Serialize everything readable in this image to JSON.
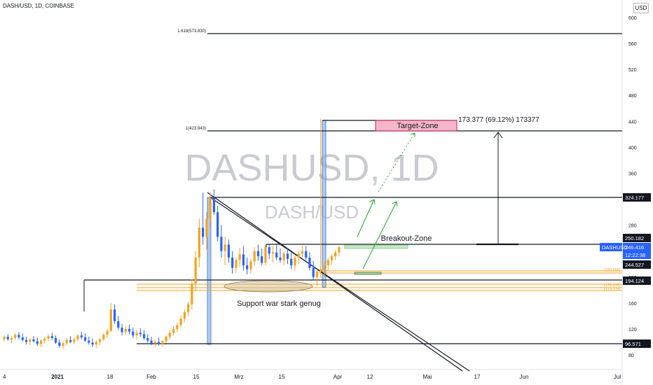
{
  "header": {
    "symbol_info": "DASH/USD, 1D, COINBASE",
    "currency_button": "USD"
  },
  "watermark": {
    "main": "DASHUSD, 1D",
    "sub": "DASH/USD"
  },
  "annotations": {
    "target_zone": "Target-Zone",
    "breakout_zone": "Breakout-Zone",
    "support_note": "Support war stark genug",
    "measure_label": "173.377 (69.12%) 173377",
    "fib_1618": "1.618(573.830)",
    "fib_1": "1(423.943)"
  },
  "price_badges": {
    "symbol": "DASHUSD",
    "price": "246.416",
    "countdown": "12:22:38"
  },
  "colors": {
    "up": "#f7a21b",
    "down": "#2962ff",
    "target_fill": "#f5b7c8",
    "breakout_fill": "#c8e6c9",
    "support_line": "#f7a21b",
    "arrow": "#1faa2b"
  },
  "chart_data": {
    "type": "candlestick",
    "title": "DASH/USD, 1D, COINBASE",
    "ylim": [
      60,
      620
    ],
    "y_ticks": [
      80,
      120,
      160,
      200,
      240,
      280,
      320,
      360,
      400,
      440,
      480,
      520,
      560,
      600
    ],
    "x_ticks": [
      "4",
      "2021",
      "18",
      "Feb",
      "15",
      "Mrz",
      "15",
      "Apr",
      "12",
      "Mai",
      "17",
      "Jun",
      "Jul"
    ],
    "horizontal_levels": [
      {
        "price": "573.830",
        "label": "1.618(573.830)"
      },
      {
        "price": "423.943",
        "label": "1(423.943)"
      },
      {
        "price": "324.177",
        "label": "324.177"
      },
      {
        "price": "250.182",
        "label": "250.182"
      },
      {
        "price": "244.527",
        "label": "244.527"
      },
      {
        "price": "194.124",
        "label": "194.124"
      },
      {
        "price": "96.571",
        "label": "96.571"
      }
    ],
    "orange_levels": [
      "(183.568)",
      "(176.978)",
      "(173.778)"
    ],
    "last_price": "246.416",
    "candles": [
      [
        104,
        110,
        100,
        108
      ],
      [
        108,
        112,
        102,
        104
      ],
      [
        104,
        109,
        98,
        106
      ],
      [
        106,
        114,
        103,
        111
      ],
      [
        111,
        115,
        104,
        107
      ],
      [
        107,
        113,
        101,
        103
      ],
      [
        103,
        108,
        96,
        100
      ],
      [
        100,
        106,
        95,
        104
      ],
      [
        104,
        109,
        99,
        101
      ],
      [
        101,
        107,
        94,
        97
      ],
      [
        97,
        104,
        92,
        102
      ],
      [
        102,
        108,
        97,
        105
      ],
      [
        105,
        112,
        101,
        109
      ],
      [
        109,
        114,
        103,
        106
      ],
      [
        106,
        110,
        97,
        99
      ],
      [
        99,
        104,
        91,
        94
      ],
      [
        94,
        101,
        89,
        98
      ],
      [
        98,
        106,
        95,
        103
      ],
      [
        103,
        109,
        98,
        100
      ],
      [
        100,
        107,
        96,
        104
      ],
      [
        104,
        112,
        101,
        110
      ],
      [
        110,
        116,
        104,
        107
      ],
      [
        107,
        113,
        100,
        102
      ],
      [
        102,
        108,
        96,
        99
      ],
      [
        99,
        105,
        92,
        96
      ],
      [
        96,
        102,
        90,
        100
      ],
      [
        100,
        106,
        95,
        104
      ],
      [
        104,
        113,
        101,
        111
      ],
      [
        111,
        120,
        107,
        117
      ],
      [
        117,
        160,
        115,
        150
      ],
      [
        150,
        158,
        128,
        132
      ],
      [
        132,
        140,
        118,
        122
      ],
      [
        122,
        128,
        110,
        115
      ],
      [
        115,
        124,
        111,
        120
      ],
      [
        120,
        127,
        112,
        116
      ],
      [
        116,
        122,
        106,
        110
      ],
      [
        110,
        118,
        104,
        114
      ],
      [
        114,
        121,
        108,
        112
      ],
      [
        112,
        118,
        103,
        106
      ],
      [
        106,
        112,
        99,
        102
      ],
      [
        102,
        108,
        95,
        98
      ],
      [
        98,
        104,
        92,
        100
      ],
      [
        100,
        107,
        94,
        97
      ],
      [
        97,
        103,
        93,
        101
      ],
      [
        101,
        110,
        98,
        108
      ],
      [
        108,
        118,
        104,
        114
      ],
      [
        114,
        124,
        110,
        120
      ],
      [
        120,
        130,
        115,
        126
      ],
      [
        126,
        140,
        122,
        136
      ],
      [
        136,
        150,
        130,
        146
      ],
      [
        146,
        162,
        140,
        158
      ],
      [
        158,
        196,
        150,
        190
      ],
      [
        190,
        240,
        178,
        230
      ],
      [
        230,
        290,
        215,
        276
      ],
      [
        276,
        330,
        250,
        262
      ],
      [
        262,
        300,
        242,
        290
      ],
      [
        290,
        330,
        275,
        322
      ],
      [
        322,
        335,
        296,
        300
      ],
      [
        300,
        310,
        255,
        262
      ],
      [
        262,
        280,
        230,
        240
      ],
      [
        240,
        262,
        218,
        250
      ],
      [
        250,
        258,
        222,
        230
      ],
      [
        230,
        240,
        205,
        214
      ],
      [
        214,
        230,
        206,
        226
      ],
      [
        226,
        245,
        215,
        235
      ],
      [
        235,
        248,
        210,
        218
      ],
      [
        218,
        230,
        204,
        212
      ],
      [
        212,
        228,
        205,
        224
      ],
      [
        224,
        246,
        218,
        240
      ],
      [
        240,
        250,
        225,
        232
      ],
      [
        232,
        244,
        218,
        222
      ],
      [
        222,
        250,
        218,
        246
      ],
      [
        246,
        250,
        228,
        236
      ],
      [
        236,
        248,
        222,
        238
      ],
      [
        238,
        250,
        226,
        230
      ],
      [
        230,
        244,
        222,
        226
      ],
      [
        226,
        240,
        218,
        236
      ],
      [
        236,
        244,
        220,
        228
      ],
      [
        228,
        238,
        212,
        218
      ],
      [
        218,
        234,
        210,
        230
      ],
      [
        230,
        240,
        220,
        236
      ],
      [
        236,
        248,
        230,
        240
      ],
      [
        240,
        248,
        226,
        230
      ],
      [
        230,
        238,
        210,
        214
      ],
      [
        214,
        225,
        195,
        200
      ],
      [
        200,
        212,
        186,
        208
      ],
      [
        208,
        444,
        198,
        212
      ],
      [
        212,
        225,
        200,
        218
      ],
      [
        218,
        230,
        210,
        226
      ],
      [
        226,
        236,
        218,
        232
      ],
      [
        232,
        242,
        226,
        238
      ],
      [
        238,
        248,
        232,
        246
      ]
    ]
  }
}
